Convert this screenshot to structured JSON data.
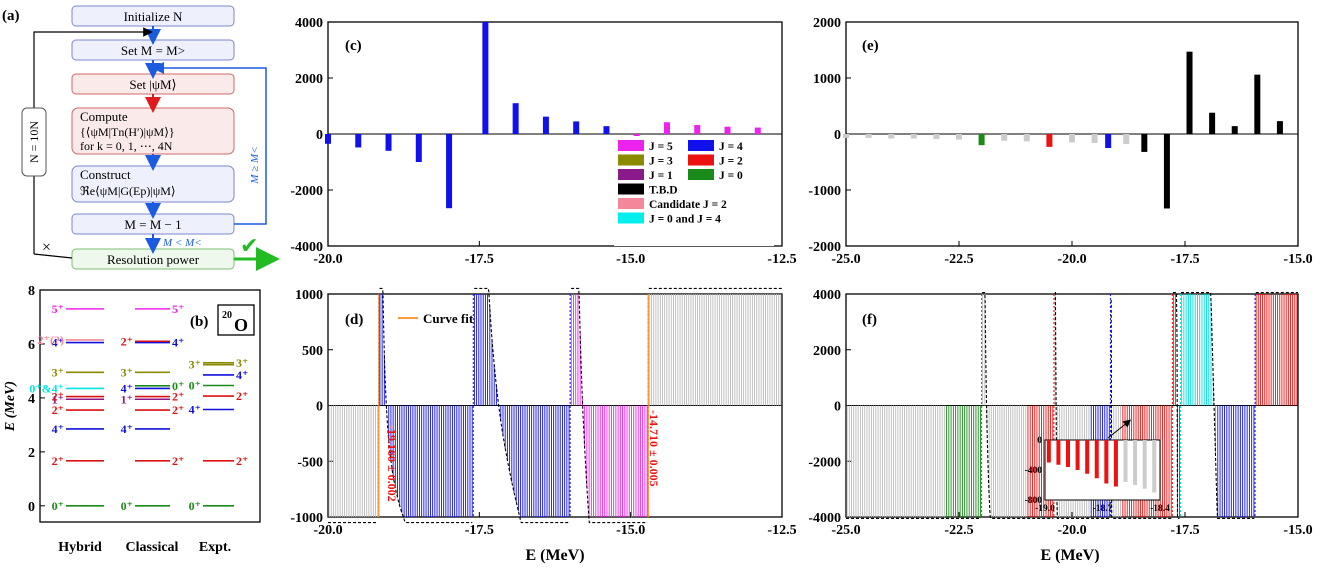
{
  "panel_labels": {
    "a": "(a)",
    "b": "(b)",
    "c": "(c)",
    "d": "(d)",
    "e": "(e)",
    "f": "(f)"
  },
  "flowchart": {
    "steps": [
      {
        "id": "init",
        "lines": [
          "Initialize N"
        ],
        "style": "blue"
      },
      {
        "id": "setM",
        "lines": [
          "Set M = M>"
        ],
        "style": "blue"
      },
      {
        "id": "setpsi",
        "lines": [
          "Set |ψM⟩"
        ],
        "style": "red"
      },
      {
        "id": "compute",
        "lines": [
          "Compute",
          "{⟨ψM|Tn(H′)|ψM⟩}",
          "for k = 0, 1, ⋯, 4N"
        ],
        "style": "red"
      },
      {
        "id": "construct",
        "lines": [
          "Construct",
          "ℜe⟨ψM|G(Ep)|ψM⟩"
        ],
        "style": "blue"
      },
      {
        "id": "decrement",
        "lines": [
          "M = M − 1"
        ],
        "style": "blue"
      },
      {
        "id": "resolution",
        "lines": [
          "Resolution power"
        ],
        "style": "green"
      }
    ],
    "loop_left_label": "N = 10N",
    "loop_right_label": "M ≥ M<",
    "exit_label": "M < M<",
    "cross_mark": "×",
    "check_mark": "✔"
  },
  "level_scheme": {
    "nucleus_label": "20O",
    "nucleus_mass": "20",
    "nucleus_symbol": "O",
    "ylabel": "E (MeV)",
    "ylim": [
      -0.6,
      8
    ],
    "yticks": [
      "0",
      "2",
      "4",
      "6",
      "8"
    ],
    "columns": [
      "Hybrid",
      "Classical",
      "Expt."
    ],
    "levels": {
      "Hybrid": [
        {
          "E": 0.0,
          "label": "0+",
          "color": "#1a8a1a"
        },
        {
          "E": 1.67,
          "label": "2+",
          "color": "#dd1111"
        },
        {
          "E": 2.85,
          "label": "4+",
          "color": "#1111dd"
        },
        {
          "E": 3.55,
          "label": "2+",
          "color": "#dd1111"
        },
        {
          "E": 3.95,
          "label": "1+",
          "color": "#8a1a8a"
        },
        {
          "E": 4.05,
          "label": "2+",
          "color": "#dd1111"
        },
        {
          "E": 4.35,
          "label": "0+&4+",
          "color": "#00e5e5"
        },
        {
          "E": 4.95,
          "label": "3+",
          "color": "#8a8a00"
        },
        {
          "E": 6.05,
          "label": "4+",
          "color": "#1111dd"
        },
        {
          "E": 6.15,
          "label": "2+(?)",
          "color": "#f4889a"
        },
        {
          "E": 7.3,
          "label": "5+",
          "color": "#ee22ee"
        }
      ],
      "Classical": [
        {
          "E": 0.0,
          "label": "0+",
          "color": "#1a8a1a"
        },
        {
          "E": 1.67,
          "label": "2+",
          "color": "#dd1111"
        },
        {
          "E": 2.85,
          "label": "4+",
          "color": "#1111dd"
        },
        {
          "E": 3.55,
          "label": "2+",
          "color": "#dd1111"
        },
        {
          "E": 3.95,
          "label": "1+",
          "color": "#8a1a8a"
        },
        {
          "E": 4.05,
          "label": "2+",
          "color": "#dd1111"
        },
        {
          "E": 4.35,
          "label": "4+",
          "color": "#1111dd"
        },
        {
          "E": 4.45,
          "label": "0+",
          "color": "#1a8a1a"
        },
        {
          "E": 4.95,
          "label": "3+",
          "color": "#8a8a00"
        },
        {
          "E": 6.05,
          "label": "4+",
          "color": "#1111dd"
        },
        {
          "E": 6.1,
          "label": "2+",
          "color": "#dd1111"
        },
        {
          "E": 7.3,
          "label": "5+",
          "color": "#ee22ee"
        }
      ],
      "Expt.": [
        {
          "E": 0.0,
          "label": "0+",
          "color": "#1a8a1a"
        },
        {
          "E": 1.67,
          "label": "2+",
          "color": "#dd1111"
        },
        {
          "E": 3.57,
          "label": "4+",
          "color": "#1111dd"
        },
        {
          "E": 4.07,
          "label": "2+",
          "color": "#dd1111"
        },
        {
          "E": 4.46,
          "label": "0+",
          "color": "#1a8a1a"
        },
        {
          "E": 4.85,
          "label": "4+",
          "color": "#1111dd"
        },
        {
          "E": 5.23,
          "label": "3+",
          "color": "#8a8a00"
        },
        {
          "E": 5.3,
          "label": "3+",
          "color": "#8a8a00"
        }
      ]
    }
  },
  "chart_data": [
    {
      "id": "c",
      "type": "bar",
      "xlim": [
        -20.0,
        -12.5
      ],
      "ylim": [
        -4000,
        4000
      ],
      "xticks": [
        "-20.0",
        "-17.5",
        "-15.0",
        "-12.5"
      ],
      "yticks": [
        "-4000",
        "-2000",
        "0",
        "2000",
        "4000"
      ],
      "bars": [
        {
          "x": -20.0,
          "y": -350,
          "color": "#1111ee"
        },
        {
          "x": -19.5,
          "y": -480,
          "color": "#1111ee"
        },
        {
          "x": -19.0,
          "y": -600,
          "color": "#1111ee"
        },
        {
          "x": -18.5,
          "y": -1000,
          "color": "#1111ee"
        },
        {
          "x": -18.0,
          "y": -2650,
          "color": "#1111ee"
        },
        {
          "x": -17.4,
          "y": 4000,
          "color": "#1111ee"
        },
        {
          "x": -16.9,
          "y": 1100,
          "color": "#1111ee"
        },
        {
          "x": -16.4,
          "y": 620,
          "color": "#1111ee"
        },
        {
          "x": -15.9,
          "y": 450,
          "color": "#1111ee"
        },
        {
          "x": -15.4,
          "y": 280,
          "color": "#1111ee"
        },
        {
          "x": -14.9,
          "y": -120,
          "color": "#ee22ee"
        },
        {
          "x": -14.4,
          "y": 420,
          "color": "#ee22ee"
        },
        {
          "x": -13.9,
          "y": 320,
          "color": "#ee22ee"
        },
        {
          "x": -13.4,
          "y": 260,
          "color": "#ee22ee"
        },
        {
          "x": -12.9,
          "y": 230,
          "color": "#ee22ee"
        }
      ],
      "legend": [
        {
          "label": "J = 5",
          "color": "#ee22ee"
        },
        {
          "label": "J = 4",
          "color": "#1111ee"
        },
        {
          "label": "J = 3",
          "color": "#8a8a00"
        },
        {
          "label": "J = 2",
          "color": "#ee1111"
        },
        {
          "label": "J = 1",
          "color": "#8a1a8a"
        },
        {
          "label": "J = 0",
          "color": "#1a8a1a"
        },
        {
          "label": "T.B.D",
          "color": "#000000"
        },
        {
          "label": "Candidate J = 2",
          "color": "#f4889a"
        },
        {
          "label": "J = 0 and J = 4",
          "color": "#00eeee"
        }
      ]
    },
    {
      "id": "d",
      "type": "line",
      "xlim": [
        -20.0,
        -12.5
      ],
      "ylim": [
        -1000,
        1000
      ],
      "xticks": [
        "-20.0",
        "-17.5",
        "-15.0",
        "-12.5"
      ],
      "yticks": [
        "-1000",
        "-500",
        "0",
        "500",
        "1000"
      ],
      "xlabel": "E (MeV)",
      "legend": [
        "Curve fit"
      ],
      "annotations": [
        "-19.160 ± 0.002",
        "-14.710 ± 0.005"
      ],
      "poles": [
        {
          "x": -19.16,
          "sign": 1,
          "amp": 3,
          "color": "#1111ee"
        },
        {
          "x": -17.6,
          "sign": 1,
          "amp": 12,
          "color": "#1111ee"
        },
        {
          "x": -16.0,
          "sign": 1,
          "amp": 9,
          "color": "#1111ee"
        },
        {
          "x": -14.71,
          "sign": 1,
          "amp": 55,
          "color": "#ee22ee"
        }
      ],
      "regions": [
        {
          "from": -20.0,
          "to": -19.16,
          "color": "#bbbbbb"
        },
        {
          "from": -19.16,
          "to": -17.6,
          "color": "#1111ee"
        },
        {
          "from": -17.6,
          "to": -16.0,
          "color": "#1111ee"
        },
        {
          "from": -16.0,
          "to": -14.71,
          "color": "#ee22ee"
        },
        {
          "from": -14.71,
          "to": -12.5,
          "color": "#bbbbbb"
        }
      ]
    },
    {
      "id": "e",
      "type": "bar",
      "xlim": [
        -25.0,
        -15.0
      ],
      "ylim": [
        -2000,
        2000
      ],
      "xticks": [
        "-25.0",
        "-22.5",
        "-20.0",
        "-17.5",
        "-15.0"
      ],
      "yticks": [
        "-2000",
        "-1000",
        "0",
        "1000",
        "2000"
      ],
      "bars": [
        {
          "x": -25.0,
          "y": -70,
          "color": "#cccccc"
        },
        {
          "x": -24.5,
          "y": -70,
          "color": "#cccccc"
        },
        {
          "x": -24.0,
          "y": -80,
          "color": "#cccccc"
        },
        {
          "x": -23.5,
          "y": -80,
          "color": "#cccccc"
        },
        {
          "x": -23.0,
          "y": -90,
          "color": "#cccccc"
        },
        {
          "x": -22.5,
          "y": -100,
          "color": "#cccccc"
        },
        {
          "x": -22.0,
          "y": -200,
          "color": "#1a8a1a"
        },
        {
          "x": -21.5,
          "y": -120,
          "color": "#cccccc"
        },
        {
          "x": -21.0,
          "y": -130,
          "color": "#cccccc"
        },
        {
          "x": -20.5,
          "y": -230,
          "color": "#ee1111"
        },
        {
          "x": -20.0,
          "y": -150,
          "color": "#cccccc"
        },
        {
          "x": -19.5,
          "y": -160,
          "color": "#cccccc"
        },
        {
          "x": -19.2,
          "y": -250,
          "color": "#1111ee"
        },
        {
          "x": -18.8,
          "y": -180,
          "color": "#cccccc"
        },
        {
          "x": -18.4,
          "y": -320,
          "color": "#000000"
        },
        {
          "x": -17.9,
          "y": -1330,
          "color": "#000000"
        },
        {
          "x": -17.4,
          "y": 1470,
          "color": "#000000"
        },
        {
          "x": -16.9,
          "y": 380,
          "color": "#000000"
        },
        {
          "x": -16.4,
          "y": 140,
          "color": "#000000"
        },
        {
          "x": -15.9,
          "y": 1060,
          "color": "#000000"
        },
        {
          "x": -15.4,
          "y": 230,
          "color": "#000000"
        }
      ]
    },
    {
      "id": "f",
      "type": "line",
      "xlim": [
        -25.0,
        -15.0
      ],
      "ylim": [
        -4000,
        4000
      ],
      "xticks": [
        "-25.0",
        "-22.5",
        "-20.0",
        "-17.5",
        "-15.0"
      ],
      "yticks": [
        "-4000",
        "-2000",
        "0",
        "2000",
        "4000"
      ],
      "xlabel": "E (MeV)",
      "poles": [
        {
          "x": -22.0,
          "sign": 1,
          "amp": 5,
          "color": "#1a8a1a"
        },
        {
          "x": -20.4,
          "sign": 1,
          "amp": 3,
          "color": "#ee1111"
        },
        {
          "x": -19.15,
          "sign": 1,
          "amp": 2,
          "color": "#1111ee"
        },
        {
          "x": -17.78,
          "sign": 1,
          "amp": 60,
          "color": "#ee1111"
        },
        {
          "x": -17.6,
          "sign": 1,
          "amp": 40,
          "color": "#00dddd"
        },
        {
          "x": -15.95,
          "sign": 1,
          "amp": 110,
          "color": "#1111ee"
        }
      ],
      "regions": [
        {
          "from": -25.0,
          "to": -22.8,
          "color": "#bbbbbb"
        },
        {
          "from": -22.8,
          "to": -22.0,
          "color": "#1a8a1a"
        },
        {
          "from": -22.0,
          "to": -21.0,
          "color": "#bbbbbb"
        },
        {
          "from": -21.0,
          "to": -20.4,
          "color": "#ee1111"
        },
        {
          "from": -20.4,
          "to": -19.6,
          "color": "#bbbbbb"
        },
        {
          "from": -19.6,
          "to": -19.15,
          "color": "#1111ee"
        },
        {
          "from": -19.15,
          "to": -18.9,
          "color": "#bbbbbb"
        },
        {
          "from": -18.9,
          "to": -17.78,
          "color": "#ee1111"
        },
        {
          "from": -17.78,
          "to": -17.6,
          "color": "#ee1111"
        },
        {
          "from": -17.6,
          "to": -16.8,
          "color": "#00dddd"
        },
        {
          "from": -16.8,
          "to": -15.95,
          "color": "#1111ee"
        },
        {
          "from": -15.95,
          "to": -15.0,
          "color": "#ee1111"
        }
      ],
      "inset": {
        "type": "bar",
        "xlim": [
          -19.0,
          -18.4
        ],
        "ylim": [
          -800,
          0
        ],
        "xticks": [
          "-19.0",
          "-18.7",
          "-18.4"
        ],
        "yticks": [
          "0",
          "-400",
          "-800"
        ],
        "bars": [
          {
            "x": -18.98,
            "y": -300,
            "color": "#ee1111"
          },
          {
            "x": -18.93,
            "y": -330,
            "color": "#ee1111"
          },
          {
            "x": -18.88,
            "y": -360,
            "color": "#ee1111"
          },
          {
            "x": -18.83,
            "y": -400,
            "color": "#ee1111"
          },
          {
            "x": -18.78,
            "y": -450,
            "color": "#ee1111"
          },
          {
            "x": -18.73,
            "y": -510,
            "color": "#ee1111"
          },
          {
            "x": -18.68,
            "y": -580,
            "color": "#ee1111"
          },
          {
            "x": -18.63,
            "y": -620,
            "color": "#ee1111"
          },
          {
            "x": -18.58,
            "y": -560,
            "color": "#cccccc"
          },
          {
            "x": -18.53,
            "y": -600,
            "color": "#cccccc"
          },
          {
            "x": -18.48,
            "y": -650,
            "color": "#cccccc"
          },
          {
            "x": -18.43,
            "y": -700,
            "color": "#cccccc"
          }
        ]
      }
    }
  ]
}
